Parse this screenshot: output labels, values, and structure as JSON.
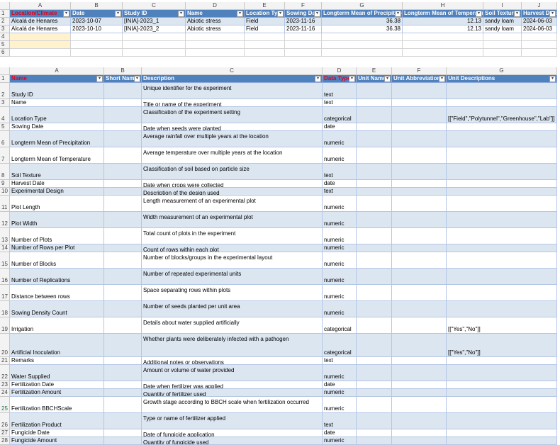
{
  "top_sheet": {
    "column_letters": [
      "A",
      "B",
      "C",
      "D",
      "E",
      "F",
      "G",
      "H",
      "I",
      "J"
    ],
    "row_numbers": [
      "1",
      "2",
      "3",
      "4",
      "5",
      "6"
    ],
    "header": [
      "Location/Climate",
      "Date",
      "Study ID",
      "Name",
      "Location Type",
      "Sowing Date",
      "Longterm Mean of Precipitation",
      "Longterm Mean of Temperature",
      "Soil Texture",
      "Harvest Date"
    ],
    "rows": [
      [
        "Alcalá de Henares",
        "2023-10-07",
        "[INIA]-2023_1",
        "Abiotic stress",
        "Field",
        "2023-11-16",
        36.38,
        12.13,
        "sandy loam",
        "2024-06-03"
      ],
      [
        "Alcalá de Henares",
        "2023-10-10",
        "[INIA]-2023_2",
        "Abiotic stress",
        "Field",
        "2023-11-16",
        36.38,
        12.13,
        "sandy loam",
        "2024-06-03"
      ]
    ]
  },
  "bottom_sheet": {
    "column_letters": [
      "A",
      "B",
      "C",
      "D",
      "E",
      "F",
      "G"
    ],
    "row_numbers": [
      "1",
      "2",
      "3",
      "4",
      "5",
      "6",
      "7",
      "8",
      "9",
      "10",
      "11",
      "12",
      "13",
      "14",
      "15",
      "16",
      "17",
      "18",
      "19",
      "20",
      "21",
      "22",
      "23",
      "24",
      "25",
      "26",
      "27",
      "28"
    ],
    "header": [
      "Name",
      "Short Name",
      "Description",
      "Data Type",
      "Unit Name",
      "Unit Abbreviation",
      "Unit Descriptions"
    ],
    "rows": [
      [
        "Study ID",
        null,
        "Unique identifier for the experiment",
        "text",
        null,
        null,
        null
      ],
      [
        "Name",
        null,
        "Title or name of the experiment",
        "text",
        null,
        null,
        null
      ],
      [
        "Location Type",
        null,
        "Classification of the experiment setting",
        "categorical",
        null,
        null,
        "[[\"Field\",\"Polytunnel\",\"Greenhouse\",\"Lab\"]]"
      ],
      [
        "Sowing Date",
        null,
        "Date when seeds were planted",
        "date",
        null,
        null,
        null
      ],
      [
        "Longterm Mean of Precipitation",
        null,
        "Average rainfall over multiple years at the location",
        "numeric",
        null,
        null,
        null
      ],
      [
        "Longterm Mean of Temperature",
        null,
        "Average temperature over multiple years at the location",
        "numeric",
        null,
        null,
        null
      ],
      [
        "Soil Texture",
        null,
        "Classification of soil based on particle size",
        "text",
        null,
        null,
        null
      ],
      [
        "Harvest Date",
        null,
        "Date when crops were collected",
        "date",
        null,
        null,
        null
      ],
      [
        "Experimental Design",
        null,
        "Description of the design used",
        "text",
        null,
        null,
        null
      ],
      [
        "Plot Length",
        null,
        "Length measurement of an experimental plot",
        "numeric",
        null,
        null,
        null
      ],
      [
        "Plot Width",
        null,
        "Width measurement of an experimental plot",
        "numeric",
        null,
        null,
        null
      ],
      [
        "Number of Plots",
        null,
        "Total count of plots in the experiment",
        "numeric",
        null,
        null,
        null
      ],
      [
        "Number of Rows per Plot",
        null,
        "Count of rows within each plot",
        "numeric",
        null,
        null,
        null
      ],
      [
        "Number of Blocks",
        null,
        "Number of blocks/groups in the experimental layout",
        "numeric",
        null,
        null,
        null
      ],
      [
        "Number of Replications",
        null,
        "Number of repeated experimental units",
        "numeric",
        null,
        null,
        null
      ],
      [
        "Distance between rows",
        null,
        "Space separating rows within plots",
        "numeric",
        null,
        null,
        null
      ],
      [
        "Sowing Density Count",
        null,
        "Number of seeds planted per unit area",
        "numeric",
        null,
        null,
        null
      ],
      [
        "Irrigation",
        null,
        "Details about water supplied artificially",
        "categorical",
        null,
        null,
        "[[\"Yes\",\"No\"]]"
      ],
      [
        "Artificial Inoculation",
        null,
        "Whether plants were deliberately infected with a pathogen",
        "categorical",
        null,
        null,
        "[[\"Yes\",\"No\"]]"
      ],
      [
        "Remarks",
        null,
        "Additional notes or observations",
        "text",
        null,
        null,
        null
      ],
      [
        "Water Supplied",
        null,
        "Amount or volume of water provided",
        "numeric",
        null,
        null,
        null
      ],
      [
        "Fertilization Date",
        null,
        "Date when fertilizer was applied",
        "date",
        null,
        null,
        null
      ],
      [
        "Fertilization Amount",
        null,
        "Quantity of fertilizer used",
        "numeric",
        null,
        null,
        null
      ],
      [
        "Fertilization BBCHScale",
        null,
        "Growth stage according to BBCH scale when fertilization occurred",
        "numeric",
        null,
        null,
        null
      ],
      [
        "Fertilization Product",
        null,
        "Type or name of fertilizer applied",
        "text",
        null,
        null,
        null
      ],
      [
        "Fungicide Date",
        null,
        "Date of fungicide application",
        "date",
        null,
        null,
        null
      ],
      [
        "Fungicide Amount",
        null,
        "Quantity of fungicide used",
        "numeric",
        null,
        null,
        null
      ]
    ]
  }
}
